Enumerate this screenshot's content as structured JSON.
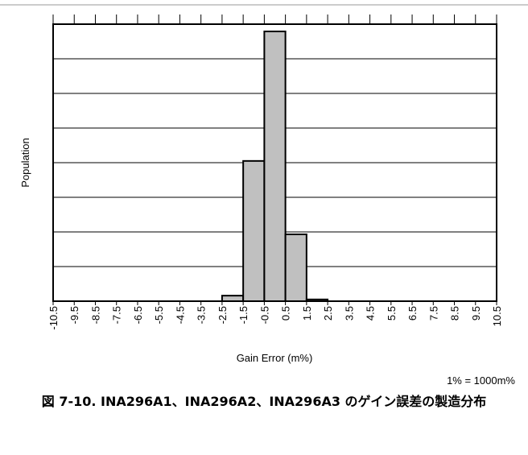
{
  "chart_data": {
    "type": "histogram",
    "ylabel": "Population",
    "xlabel": "Gain Error (m%)",
    "note": "1% = 1000m%",
    "caption": "図 7-10. INA296A1、INA296A2、INA296A3 のゲイン誤差の製造分布",
    "bins": [
      -10.5,
      -9.5,
      -8.5,
      -7.5,
      -6.5,
      -5.5,
      -4.5,
      -3.5,
      -2.5,
      -1.5,
      -0.5,
      0.5,
      1.5,
      2.5,
      3.5,
      4.5,
      5.5,
      6.5,
      7.5,
      8.5,
      9.5,
      10.5
    ],
    "values": [
      0,
      0,
      0,
      0,
      0,
      0,
      0,
      0,
      0.16,
      4.05,
      7.79,
      1.93,
      0.05,
      0,
      0,
      0,
      0,
      0,
      0,
      0,
      0
    ],
    "color": "#c0c0c0",
    "xlim": [
      -10.5,
      10.5
    ],
    "xticks": [
      -10.5,
      -9.5,
      -8.5,
      -7.5,
      -6.5,
      -5.5,
      -4.5,
      -3.5,
      -2.5,
      -1.5,
      -0.5,
      0.5,
      1.5,
      2.5,
      3.5,
      4.5,
      5.5,
      6.5,
      7.5,
      8.5,
      9.5,
      10.5
    ],
    "ylim": [
      0,
      8
    ],
    "yticks": [
      0,
      1,
      2,
      3,
      4,
      5,
      6,
      7,
      8
    ],
    "grid": true
  }
}
